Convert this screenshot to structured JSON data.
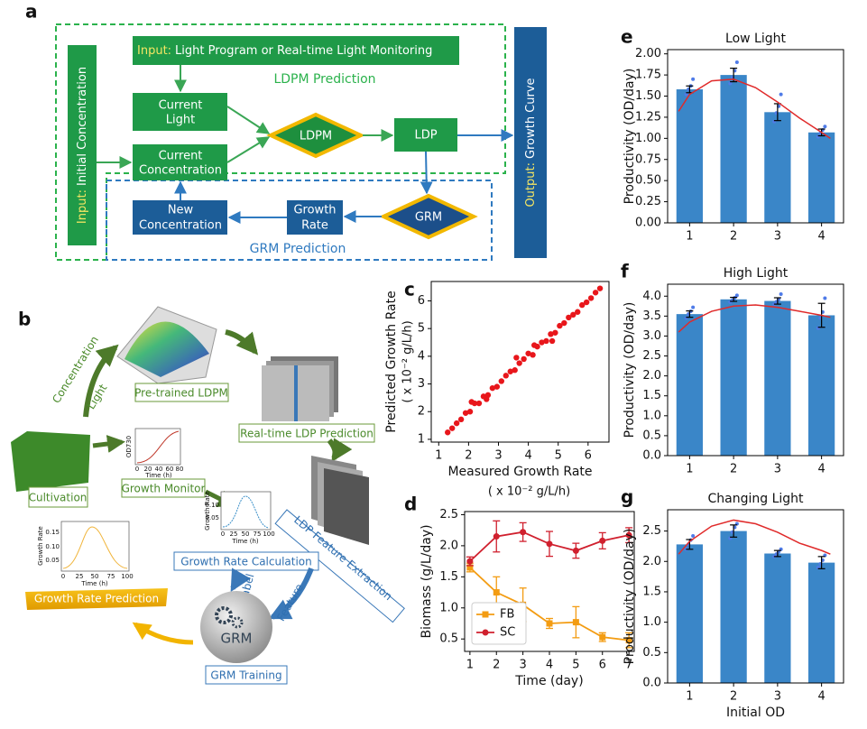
{
  "panel_labels": [
    "a",
    "b",
    "c",
    "d",
    "e",
    "f",
    "g"
  ],
  "diagram_a": {
    "input_top": {
      "prefix": "Input:",
      "text": "Light Program or Real-time Light Monitoring"
    },
    "ldpm_prediction": "LDPM Prediction",
    "current_light": [
      "Current",
      "Light"
    ],
    "current_concentration": [
      "Current",
      "Concentration"
    ],
    "ldpm": "LDPM",
    "ldp": "LDP",
    "grm": "GRM",
    "growth_rate": [
      "Growth",
      "Rate"
    ],
    "new_concentration": [
      "New",
      "Concentration"
    ],
    "grm_prediction": "GRM Prediction",
    "input_left": {
      "prefix": "Input:",
      "text": "Initial Concentration"
    },
    "output": {
      "prefix": "Output:",
      "text": "Growth Curve"
    }
  },
  "diagram_b": {
    "concentration": "Concentration",
    "light": "Light",
    "pretrained": "Pre-trained LDPM",
    "realtime": "Real-time LDP Prediction",
    "cultivation": "Cultivation",
    "growth_monitor": "Growth Monitor",
    "feature_extraction": "LDP Feature Extraction",
    "growth_rate_calc": "Growth Rate Calculation",
    "label": "Label",
    "feature": "Feature",
    "grm": "GRM",
    "grm_training": "GRM Training",
    "growth_rate_prediction": "Growth Rate Prediction",
    "mini_od": {
      "ylabel": "OD730",
      "xlabel": "Time (h)",
      "xticks": [
        "0",
        "20",
        "40",
        "60",
        "80"
      ]
    },
    "mini_rate": {
      "ylabel": "Growth Rate",
      "xlabel": "Time (h)",
      "xticks": [
        "0",
        "25",
        "50",
        "75",
        "100"
      ],
      "yticks": [
        "0.10",
        "0.05"
      ]
    },
    "mini_pred": {
      "ylabel": "Growth Rate",
      "xlabel": "Time (h)",
      "xticks": [
        "0",
        "25",
        "50",
        "75",
        "100"
      ],
      "yticks": [
        "0.15",
        "0.10",
        "0.05"
      ]
    }
  },
  "chart_data": [
    {
      "type": "scatter",
      "xlabel": "Measured Growth Rate",
      "xlabel_unit": "( x 10⁻² g/L/h)",
      "ylabel": "Predicted Growth Rate",
      "ylabel_unit": "( x 10⁻² g/L/h)",
      "color": "#e8161b",
      "x": [
        1.3,
        1.45,
        1.6,
        1.75,
        1.9,
        2.05,
        2.2,
        2.35,
        2.5,
        2.65,
        2.8,
        2.95,
        3.1,
        3.25,
        3.4,
        3.55,
        3.7,
        3.85,
        4.0,
        4.15,
        4.3,
        4.45,
        4.6,
        4.75,
        4.9,
        5.05,
        5.2,
        5.35,
        5.5,
        5.65,
        5.8,
        5.95,
        6.1,
        6.25,
        6.4,
        2.1,
        3.6,
        4.2,
        2.6,
        4.8
      ],
      "y": [
        1.25,
        1.4,
        1.58,
        1.72,
        1.95,
        2.0,
        2.3,
        2.3,
        2.55,
        2.6,
        2.85,
        2.9,
        3.1,
        3.3,
        3.45,
        3.5,
        3.75,
        3.9,
        4.1,
        4.05,
        4.35,
        4.5,
        4.55,
        4.8,
        4.85,
        5.1,
        5.2,
        5.4,
        5.5,
        5.6,
        5.85,
        5.95,
        6.1,
        6.3,
        6.45,
        2.35,
        3.95,
        4.4,
        2.45,
        4.55
      ],
      "xlim": [
        0.75,
        6.7
      ],
      "ylim": [
        0.9,
        6.7
      ],
      "xticks": [
        1,
        2,
        3,
        4,
        5,
        6
      ],
      "yticks": [
        1,
        2,
        3,
        4,
        5,
        6
      ]
    },
    {
      "type": "line",
      "xlabel": "Time (day)",
      "ylabel": "Biomass (g/L/day)",
      "legend": "lower left",
      "x": [
        1,
        2,
        3,
        4,
        5,
        6,
        7
      ],
      "series": [
        {
          "name": "FB",
          "color": "#f39c12",
          "marker": "square",
          "values": [
            1.65,
            1.25,
            1.05,
            0.75,
            0.77,
            0.53,
            0.48
          ],
          "errors": [
            0.07,
            0.25,
            0.27,
            0.08,
            0.25,
            0.07,
            0.12
          ]
        },
        {
          "name": "SC",
          "color": "#d0202e",
          "marker": "circle",
          "values": [
            1.75,
            2.15,
            2.22,
            2.03,
            1.92,
            2.08,
            2.17
          ],
          "errors": [
            0.07,
            0.25,
            0.15,
            0.2,
            0.12,
            0.13,
            0.12
          ]
        }
      ],
      "xlim": [
        0.8,
        7.2
      ],
      "ylim": [
        0.3,
        2.55
      ],
      "xticks": [
        1,
        2,
        3,
        4,
        5,
        6,
        7
      ],
      "yticks": [
        0.5,
        {
          "value": 1,
          "label": "1.0"
        },
        1.5,
        {
          "value": 2,
          "label": "2.0"
        },
        2.5
      ]
    },
    {
      "type": "bar",
      "title": "Low Light",
      "ylabel": "Productivity (OD/day)",
      "color": "#3a86c8",
      "replicate_color": "#4f7be8",
      "fit_color": "#e02a2a",
      "x": [
        1,
        2,
        3,
        4
      ],
      "values": [
        1.58,
        1.75,
        1.31,
        1.07
      ],
      "errors": [
        0.04,
        0.08,
        0.1,
        0.04
      ],
      "replicates": [
        [
          1.52,
          1.58,
          1.62,
          1.7
        ],
        [
          1.65,
          1.72,
          1.8,
          1.9
        ],
        [
          1.2,
          1.3,
          1.38,
          1.52
        ],
        [
          1.02,
          1.06,
          1.1,
          1.14
        ]
      ],
      "fit": {
        "x": [
          0.75,
          1,
          1.5,
          2,
          2.5,
          3,
          3.5,
          4,
          4.2
        ],
        "values": [
          1.32,
          1.52,
          1.68,
          1.7,
          1.6,
          1.43,
          1.24,
          1.07,
          1.0
        ]
      },
      "xlim": [
        0.5,
        4.5
      ],
      "ylim": [
        0,
        2.05
      ],
      "xticks": [
        1,
        2,
        3,
        4
      ],
      "yticks": [
        {
          "value": 0,
          "label": "0.00"
        },
        0.25,
        {
          "value": 0.5,
          "label": "0.50"
        },
        0.75,
        {
          "value": 1,
          "label": "1.00"
        },
        1.25,
        {
          "value": 1.5,
          "label": "1.50"
        },
        1.75,
        {
          "value": 2,
          "label": "2.00"
        }
      ]
    },
    {
      "type": "bar",
      "title": "High Light",
      "ylabel": "Productivity (OD/day)",
      "color": "#3a86c8",
      "replicate_color": "#4f7be8",
      "fit_color": "#e02a2a",
      "x": [
        1,
        2,
        3,
        4
      ],
      "values": [
        3.55,
        3.92,
        3.88,
        3.52
      ],
      "errors": [
        0.08,
        0.05,
        0.08,
        0.3
      ],
      "replicates": [
        [
          3.45,
          3.55,
          3.62,
          3.72
        ],
        [
          3.85,
          3.9,
          3.96,
          4.02
        ],
        [
          3.8,
          3.86,
          3.92,
          4.05
        ],
        [
          3.2,
          3.45,
          3.6,
          3.95
        ]
      ],
      "fit": {
        "x": [
          0.75,
          1,
          1.5,
          2,
          2.5,
          3,
          3.5,
          4,
          4.2
        ],
        "values": [
          3.1,
          3.35,
          3.62,
          3.75,
          3.78,
          3.72,
          3.62,
          3.52,
          3.47
        ]
      },
      "xlim": [
        0.5,
        4.5
      ],
      "ylim": [
        0,
        4.3
      ],
      "xticks": [
        1,
        2,
        3,
        4
      ],
      "yticks": [
        {
          "value": 0,
          "label": "0.0"
        },
        0.5,
        {
          "value": 1,
          "label": "1.0"
        },
        1.5,
        {
          "value": 2,
          "label": "2.0"
        },
        2.5,
        {
          "value": 3,
          "label": "3.0"
        },
        3.5,
        {
          "value": 4,
          "label": "4.0"
        }
      ]
    },
    {
      "type": "bar",
      "title": "Changing Light",
      "xlabel": "Initial OD",
      "ylabel": "Productivity (OD/day)",
      "color": "#3a86c8",
      "replicate_color": "#4f7be8",
      "fit_color": "#e02a2a",
      "x": [
        1,
        2,
        3,
        4
      ],
      "values": [
        2.28,
        2.5,
        2.13,
        1.98
      ],
      "errors": [
        0.08,
        0.1,
        0.05,
        0.1
      ],
      "replicates": [
        [
          2.2,
          2.28,
          2.35,
          2.42
        ],
        [
          2.38,
          2.48,
          2.56,
          2.62
        ],
        [
          2.08,
          2.12,
          2.16,
          2.2
        ],
        [
          1.9,
          1.96,
          2.02,
          2.1
        ]
      ],
      "fit": {
        "x": [
          0.75,
          1,
          1.5,
          2,
          2.5,
          3,
          3.5,
          4,
          4.2
        ],
        "values": [
          2.12,
          2.33,
          2.58,
          2.68,
          2.62,
          2.48,
          2.3,
          2.18,
          2.12
        ]
      },
      "xlim": [
        0.5,
        4.5
      ],
      "ylim": [
        0,
        2.85
      ],
      "xticks": [
        1,
        2,
        3,
        4
      ],
      "yticks": [
        {
          "value": 0,
          "label": "0.0"
        },
        0.5,
        {
          "value": 1,
          "label": "1.0"
        },
        1.5,
        {
          "value": 2,
          "label": "2.0"
        },
        2.5
      ]
    }
  ]
}
